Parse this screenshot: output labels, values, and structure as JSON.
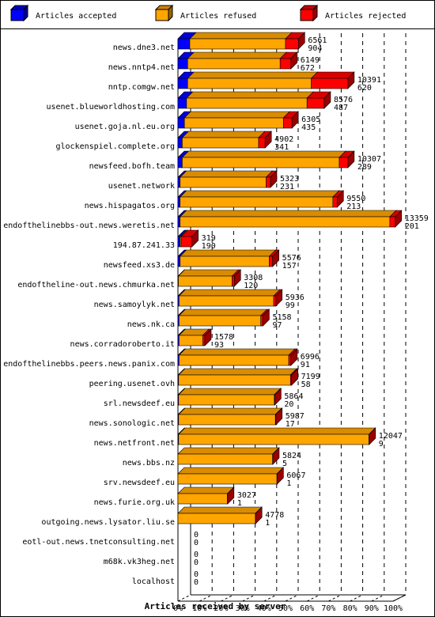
{
  "chart_data": {
    "type": "bar",
    "orientation": "horizontal",
    "stacked": true,
    "three_d": true,
    "title": "",
    "xlabel": "Articles received by server",
    "ylabel": "",
    "xlim": [
      0,
      100
    ],
    "x_unit": "%",
    "x_ticks": [
      "0%",
      "10%",
      "20%",
      "30%",
      "40%",
      "50%",
      "60%",
      "70%",
      "80%",
      "90%",
      "100%"
    ],
    "grid": "vertical dashed",
    "legend_position": "top",
    "series": [
      {
        "name": "Articles accepted",
        "color": "#0000ff"
      },
      {
        "name": "Articles refused",
        "color": "#ffa500"
      },
      {
        "name": "Articles rejected",
        "color": "#ff0000"
      }
    ],
    "categories": [
      "news.dne3.net",
      "news.nntp4.net",
      "nntp.comgw.net",
      "usenet.blueworldhosting.com",
      "usenet.goja.nl.eu.org",
      "glockenspiel.complete.org",
      "newsfeed.bofh.team",
      "usenet.network",
      "news.hispagatos.org",
      "endofthelinebbs-out.news.weretis.net",
      "194.87.241.33",
      "newsfeed.xs3.de",
      "endoftheline-out.news.chmurka.net",
      "news.samoylyk.net",
      "news.nk.ca",
      "news.corradoroberto.it",
      "endofthelinebbs.peers.news.panix.com",
      "peering.usenet.ovh",
      "srl.newsdeef.eu",
      "news.sonologic.net",
      "news.netfront.net",
      "news.bbs.nz",
      "srv.newsdeef.eu",
      "news.furie.org.uk",
      "outgoing.news.lysator.liu.se",
      "eotl-out.news.tnetconsulting.net",
      "m68k.vk3heg.net",
      "localhost"
    ],
    "labels_total": [
      "6561",
      "6149",
      "10391",
      "8576",
      "6305",
      "4902",
      "10307",
      "5323",
      "9550",
      "13359",
      "319",
      "5576",
      "3308",
      "5936",
      "5158",
      "1578",
      "6996",
      "7199",
      "5864",
      "5987",
      "12047",
      "5824",
      "6067",
      "3027",
      "4778",
      "0",
      "0",
      "0"
    ],
    "labels_rejected": [
      "904",
      "672",
      "620",
      "487",
      "435",
      "341",
      "289",
      "231",
      "213",
      "201",
      "190",
      "157",
      "120",
      "99",
      "97",
      "93",
      "91",
      "58",
      "20",
      "17",
      "9",
      "5",
      "1",
      "1",
      "1",
      "0",
      "0",
      "0"
    ],
    "values_pct": {
      "accepted": [
        5.5,
        4.5,
        4.5,
        4,
        3,
        2,
        2,
        1,
        1,
        1,
        1,
        1,
        0.2,
        0.5,
        0.5,
        0.5,
        0.5,
        0.3,
        0.3,
        0.3,
        0.3,
        0,
        0,
        0,
        0,
        0,
        0,
        0
      ],
      "refused": [
        44.5,
        43,
        57.5,
        56,
        46,
        35.5,
        73,
        40,
        71,
        97.5,
        0.5,
        41.5,
        25,
        44,
        38,
        11,
        51,
        52,
        44.5,
        45,
        88.5,
        44,
        46,
        23,
        36,
        0,
        0,
        0
      ],
      "rejected": [
        6,
        5,
        17,
        8,
        4,
        3,
        4,
        2,
        2,
        2.5,
        5,
        1.5,
        1,
        1,
        1,
        1,
        1,
        0.5,
        0.2,
        0.2,
        0.1,
        0.1,
        0.1,
        0.1,
        0.1,
        0,
        0,
        0
      ]
    }
  }
}
